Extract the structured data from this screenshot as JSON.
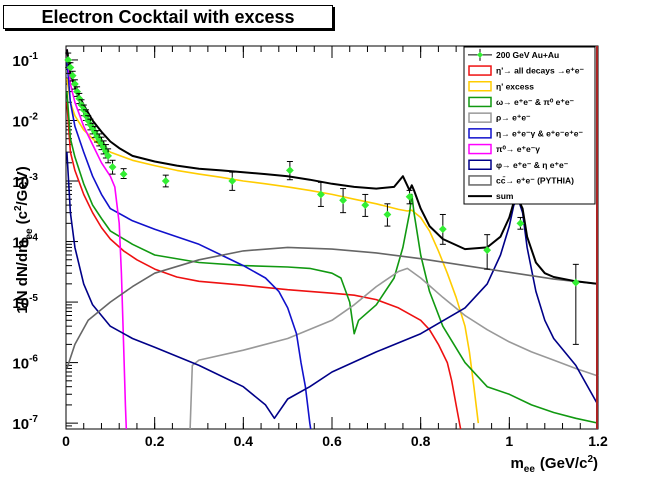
{
  "chart_data": {
    "type": "line",
    "title": "Electron Cocktail with excess",
    "xlabel": "m",
    "xlabel_sub": "ee",
    "xlabel_unit": "(GeV/c",
    "xlabel_unit_sup": "2",
    "xlabel_unit_close": ")",
    "ylabel": "1/N dN/dm",
    "ylabel_sub": "ee",
    "ylabel_unit": "(c",
    "ylabel_unit_sup": "2",
    "ylabel_unit_close": "/GeV)",
    "xlim": [
      0,
      1.2
    ],
    "ylim": [
      8e-08,
      0.17
    ],
    "ylog": true,
    "grid": false,
    "legend_placement": "top-right",
    "x_ticks": [
      "0",
      "0.2",
      "0.4",
      "0.6",
      "0.8",
      "1",
      "1.2"
    ],
    "x_tick_values": [
      0,
      0.2,
      0.4,
      0.6,
      0.8,
      1.0,
      1.2
    ],
    "y_ticks": [
      {
        "base": "10",
        "exp": "-7",
        "value": 1e-07
      },
      {
        "base": "10",
        "exp": "-6",
        "value": 1e-06
      },
      {
        "base": "10",
        "exp": "-5",
        "value": 1e-05
      },
      {
        "base": "10",
        "exp": "-4",
        "value": 0.0001
      },
      {
        "base": "10",
        "exp": "-3",
        "value": 0.001
      },
      {
        "base": "10",
        "exp": "-2",
        "value": 0.01
      },
      {
        "base": "10",
        "exp": "-1",
        "value": 0.1
      }
    ],
    "data_points": {
      "name": "200 GeV Au+Au",
      "color": "#33ee33",
      "points": [
        [
          0.005,
          0.1,
          0.13,
          0.075
        ],
        [
          0.01,
          0.075,
          0.09,
          0.06
        ],
        [
          0.015,
          0.055,
          0.065,
          0.045
        ],
        [
          0.02,
          0.04,
          0.047,
          0.033
        ],
        [
          0.025,
          0.03,
          0.036,
          0.025
        ],
        [
          0.03,
          0.023,
          0.028,
          0.019
        ],
        [
          0.035,
          0.018,
          0.022,
          0.015
        ],
        [
          0.04,
          0.015,
          0.018,
          0.012
        ],
        [
          0.045,
          0.012,
          0.015,
          0.01
        ],
        [
          0.05,
          0.01,
          0.012,
          0.0085
        ],
        [
          0.055,
          0.0085,
          0.0105,
          0.007
        ],
        [
          0.06,
          0.0075,
          0.009,
          0.006
        ],
        [
          0.065,
          0.0065,
          0.008,
          0.0052
        ],
        [
          0.07,
          0.0055,
          0.0068,
          0.0044
        ],
        [
          0.075,
          0.0048,
          0.006,
          0.0038
        ],
        [
          0.08,
          0.0042,
          0.0053,
          0.0033
        ],
        [
          0.085,
          0.0036,
          0.0046,
          0.0028
        ],
        [
          0.09,
          0.0031,
          0.004,
          0.0024
        ],
        [
          0.095,
          0.0026,
          0.0034,
          0.002
        ],
        [
          0.105,
          0.0017,
          0.0022,
          0.0013
        ],
        [
          0.13,
          0.0013,
          0.0016,
          0.0011
        ],
        [
          0.225,
          0.001,
          0.00125,
          0.0008
        ],
        [
          0.375,
          0.001,
          0.0014,
          0.0007
        ],
        [
          0.505,
          0.0015,
          0.0021,
          0.00105
        ],
        [
          0.575,
          0.0006,
          0.00095,
          0.00038
        ],
        [
          0.625,
          0.00048,
          0.00075,
          0.0003
        ],
        [
          0.675,
          0.0004,
          0.0006,
          0.00026
        ],
        [
          0.725,
          0.00028,
          0.00042,
          0.00018
        ],
        [
          0.775,
          0.00055,
          0.0007,
          0.00042
        ],
        [
          0.85,
          0.00016,
          0.00028,
          9e-05
        ],
        [
          0.95,
          7.2e-05,
          0.00013,
          3.5e-05
        ],
        [
          1.025,
          0.0002,
          0.00025,
          0.00016
        ],
        [
          1.15,
          2.1e-05,
          4.2e-05,
          2e-06
        ]
      ]
    },
    "series": [
      {
        "name": "η'→ all decays →e⁺e⁻",
        "color": "#ee1111",
        "points": [
          [
            0.002,
            0.02
          ],
          [
            0.01,
            0.003
          ],
          [
            0.02,
            0.0015
          ],
          [
            0.04,
            0.0006
          ],
          [
            0.06,
            0.0003
          ],
          [
            0.08,
            0.00017
          ],
          [
            0.1,
            0.00011
          ],
          [
            0.13,
            7e-05
          ],
          [
            0.16,
            5e-05
          ],
          [
            0.2,
            3.5e-05
          ],
          [
            0.25,
            2.6e-05
          ],
          [
            0.3,
            2.2e-05
          ],
          [
            0.4,
            1.9e-05
          ],
          [
            0.5,
            1.6e-05
          ],
          [
            0.55,
            1.5e-05
          ],
          [
            0.6,
            1.4e-05
          ],
          [
            0.65,
            1.3e-05
          ],
          [
            0.7,
            1.1e-05
          ],
          [
            0.75,
            8e-06
          ],
          [
            0.8,
            5e-06
          ],
          [
            0.82,
            3.5e-06
          ],
          [
            0.84,
            2e-06
          ],
          [
            0.86,
            1e-06
          ],
          [
            0.87,
            5e-07
          ],
          [
            0.88,
            2e-07
          ],
          [
            0.89,
            8e-08
          ]
        ]
      },
      {
        "name": "η' excess",
        "color": "#ffcc00",
        "points": [
          [
            0.002,
            0.05
          ],
          [
            0.01,
            0.02
          ],
          [
            0.02,
            0.012
          ],
          [
            0.04,
            0.007
          ],
          [
            0.06,
            0.005
          ],
          [
            0.08,
            0.0037
          ],
          [
            0.1,
            0.003
          ],
          [
            0.15,
            0.0022
          ],
          [
            0.2,
            0.0018
          ],
          [
            0.25,
            0.0015
          ],
          [
            0.3,
            0.0013
          ],
          [
            0.35,
            0.00115
          ],
          [
            0.4,
            0.001
          ],
          [
            0.45,
            0.0009
          ],
          [
            0.5,
            0.0008
          ],
          [
            0.55,
            0.0007
          ],
          [
            0.6,
            0.0006
          ],
          [
            0.65,
            0.0005
          ],
          [
            0.7,
            0.00042
          ],
          [
            0.75,
            0.00034
          ],
          [
            0.77,
            0.00032
          ],
          [
            0.78,
            0.00033
          ],
          [
            0.8,
            0.00025
          ],
          [
            0.82,
            0.00015
          ],
          [
            0.84,
            7e-05
          ],
          [
            0.86,
            3e-05
          ],
          [
            0.88,
            1.2e-05
          ],
          [
            0.9,
            4e-06
          ],
          [
            0.91,
            1.5e-06
          ],
          [
            0.92,
            4e-07
          ],
          [
            0.93,
            1e-07
          ]
        ]
      },
      {
        "name": "ω→ e⁺e⁻ & π⁰ e⁺e⁻",
        "color": "#119911",
        "points": [
          [
            0.002,
            0.03
          ],
          [
            0.01,
            0.005
          ],
          [
            0.02,
            0.0025
          ],
          [
            0.04,
            0.0009
          ],
          [
            0.06,
            0.0004
          ],
          [
            0.08,
            0.00024
          ],
          [
            0.1,
            0.00015
          ],
          [
            0.15,
            9e-05
          ],
          [
            0.2,
            6e-05
          ],
          [
            0.3,
            4.5e-05
          ],
          [
            0.4,
            4e-05
          ],
          [
            0.5,
            3.8e-05
          ],
          [
            0.55,
            3.6e-05
          ],
          [
            0.6,
            3e-05
          ],
          [
            0.62,
            2.5e-05
          ],
          [
            0.64,
            1e-05
          ],
          [
            0.65,
            3e-06
          ],
          [
            0.66,
            5e-06
          ],
          [
            0.7,
            9e-06
          ],
          [
            0.74,
            2.5e-05
          ],
          [
            0.76,
            8e-05
          ],
          [
            0.775,
            0.0003
          ],
          [
            0.78,
            0.0006
          ],
          [
            0.785,
            0.0003
          ],
          [
            0.8,
            6e-05
          ],
          [
            0.82,
            1.5e-05
          ],
          [
            0.85,
            4e-06
          ],
          [
            0.9,
            1e-06
          ],
          [
            0.95,
            4e-07
          ],
          [
            1.0,
            3e-07
          ],
          [
            1.05,
            2e-07
          ],
          [
            1.1,
            1.5e-07
          ],
          [
            1.15,
            1.2e-07
          ],
          [
            1.2,
            1e-07
          ]
        ]
      },
      {
        "name": "ρ→ e⁺e⁻",
        "color": "#999999",
        "points": [
          [
            0.28,
            8e-08
          ],
          [
            0.285,
            9e-07
          ],
          [
            0.3,
            1.1e-06
          ],
          [
            0.4,
            1.6e-06
          ],
          [
            0.5,
            2.5e-06
          ],
          [
            0.6,
            5e-06
          ],
          [
            0.65,
            9e-06
          ],
          [
            0.7,
            1.8e-05
          ],
          [
            0.75,
            3.2e-05
          ],
          [
            0.77,
            3.6e-05
          ],
          [
            0.8,
            2.5e-05
          ],
          [
            0.85,
            1.2e-05
          ],
          [
            0.9,
            6e-06
          ],
          [
            0.95,
            3.5e-06
          ],
          [
            1.0,
            2.2e-06
          ],
          [
            1.05,
            1.5e-06
          ],
          [
            1.1,
            1.1e-06
          ],
          [
            1.15,
            8e-07
          ],
          [
            1.2,
            6e-07
          ]
        ]
      },
      {
        "name": "η→ e⁺e⁻γ & e⁺e⁻e⁺e⁻",
        "color": "#1111cc",
        "points": [
          [
            0.002,
            0.1
          ],
          [
            0.01,
            0.02
          ],
          [
            0.02,
            0.008
          ],
          [
            0.04,
            0.003
          ],
          [
            0.06,
            0.0012
          ],
          [
            0.08,
            0.0006
          ],
          [
            0.1,
            0.00035
          ],
          [
            0.15,
            0.00022
          ],
          [
            0.2,
            0.00016
          ],
          [
            0.25,
            0.00012
          ],
          [
            0.3,
            9e-05
          ],
          [
            0.35,
            6e-05
          ],
          [
            0.4,
            4e-05
          ],
          [
            0.45,
            2.5e-05
          ],
          [
            0.48,
            1.5e-05
          ],
          [
            0.5,
            8e-06
          ],
          [
            0.52,
            3e-06
          ],
          [
            0.53,
            1e-06
          ],
          [
            0.54,
            4e-07
          ],
          [
            0.55,
            1e-07
          ],
          [
            0.552,
            8e-08
          ]
        ]
      },
      {
        "name": "π⁰→ e⁺e⁻γ",
        "color": "#ff00ff",
        "points": [
          [
            0.002,
            0.15
          ],
          [
            0.01,
            0.04
          ],
          [
            0.02,
            0.02
          ],
          [
            0.04,
            0.008
          ],
          [
            0.06,
            0.004
          ],
          [
            0.08,
            0.002
          ],
          [
            0.1,
            0.0012
          ],
          [
            0.11,
            0.0008
          ],
          [
            0.12,
            0.0002
          ],
          [
            0.125,
            3e-05
          ],
          [
            0.13,
            2e-06
          ],
          [
            0.134,
            2e-07
          ],
          [
            0.136,
            8e-08
          ]
        ]
      },
      {
        "name": "φ→ e⁺e⁻ & η e⁺e⁻",
        "color": "#000088",
        "points": [
          [
            0.002,
            0.003
          ],
          [
            0.01,
            0.0003
          ],
          [
            0.02,
            8e-05
          ],
          [
            0.04,
            2e-05
          ],
          [
            0.06,
            9e-06
          ],
          [
            0.1,
            4e-06
          ],
          [
            0.15,
            2.5e-06
          ],
          [
            0.2,
            1.8e-06
          ],
          [
            0.3,
            9e-07
          ],
          [
            0.4,
            4e-07
          ],
          [
            0.45,
            2e-07
          ],
          [
            0.47,
            1.2e-07
          ],
          [
            0.5,
            2.5e-07
          ],
          [
            0.55,
            4e-07
          ],
          [
            0.6,
            7e-07
          ],
          [
            0.7,
            1.5e-06
          ],
          [
            0.8,
            3e-06
          ],
          [
            0.9,
            8e-06
          ],
          [
            0.95,
            2e-05
          ],
          [
            0.98,
            6e-05
          ],
          [
            1.0,
            0.00018
          ],
          [
            1.01,
            0.0004
          ],
          [
            1.02,
            0.0005
          ],
          [
            1.03,
            0.0003
          ],
          [
            1.04,
            8e-05
          ],
          [
            1.06,
            1.5e-05
          ],
          [
            1.08,
            5e-06
          ],
          [
            1.1,
            2.5e-06
          ],
          [
            1.15,
            9e-07
          ],
          [
            1.2,
            2e-07
          ]
        ]
      },
      {
        "name": "cc̄→ e⁺e⁻ (PYTHIA)",
        "color": "#666666",
        "points": [
          [
            0.002,
            8e-07
          ],
          [
            0.02,
            2e-06
          ],
          [
            0.05,
            5e-06
          ],
          [
            0.1,
            1e-05
          ],
          [
            0.15,
            1.8e-05
          ],
          [
            0.2,
            3e-05
          ],
          [
            0.3,
            5e-05
          ],
          [
            0.4,
            7e-05
          ],
          [
            0.5,
            8e-05
          ],
          [
            0.6,
            7.5e-05
          ],
          [
            0.7,
            6.5e-05
          ],
          [
            0.8,
            5.2e-05
          ],
          [
            0.9,
            4e-05
          ],
          [
            1.0,
            3.1e-05
          ],
          [
            1.1,
            2.4e-05
          ],
          [
            1.2,
            2e-05
          ]
        ]
      },
      {
        "name": "sum",
        "color": "#000000",
        "points": [
          [
            0.002,
            0.15
          ],
          [
            0.01,
            0.06
          ],
          [
            0.02,
            0.035
          ],
          [
            0.04,
            0.018
          ],
          [
            0.06,
            0.01
          ],
          [
            0.08,
            0.0065
          ],
          [
            0.1,
            0.0045
          ],
          [
            0.12,
            0.0035
          ],
          [
            0.15,
            0.0026
          ],
          [
            0.2,
            0.0021
          ],
          [
            0.25,
            0.0018
          ],
          [
            0.3,
            0.0016
          ],
          [
            0.35,
            0.0015
          ],
          [
            0.4,
            0.0014
          ],
          [
            0.45,
            0.0013
          ],
          [
            0.5,
            0.0012
          ],
          [
            0.55,
            0.00105
          ],
          [
            0.6,
            0.0009
          ],
          [
            0.65,
            0.0008
          ],
          [
            0.7,
            0.00075
          ],
          [
            0.74,
            0.0008
          ],
          [
            0.76,
            0.0012
          ],
          [
            0.775,
            0.0007
          ],
          [
            0.78,
            0.00085
          ],
          [
            0.785,
            0.0007
          ],
          [
            0.8,
            0.00035
          ],
          [
            0.82,
            0.00018
          ],
          [
            0.85,
            0.00011
          ],
          [
            0.9,
            7.5e-05
          ],
          [
            0.95,
            8e-05
          ],
          [
            0.98,
            0.00012
          ],
          [
            1.0,
            0.00025
          ],
          [
            1.01,
            0.00045
          ],
          [
            1.02,
            0.0005
          ],
          [
            1.03,
            0.00035
          ],
          [
            1.04,
            0.00012
          ],
          [
            1.06,
            4.5e-05
          ],
          [
            1.08,
            3e-05
          ],
          [
            1.1,
            2.6e-05
          ],
          [
            1.15,
            2.2e-05
          ],
          [
            1.2,
            2e-05
          ]
        ]
      }
    ]
  }
}
